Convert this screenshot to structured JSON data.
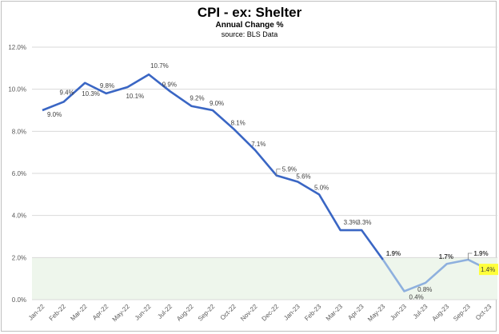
{
  "chart_data": {
    "type": "line",
    "title": "CPI - ex: Shelter",
    "subtitle": "Annual Change %",
    "source": "source: BLS Data",
    "xlabel": "",
    "ylabel": "",
    "ylim": [
      0,
      12
    ],
    "y_ticks": [
      "0.0%",
      "2.0%",
      "4.0%",
      "6.0%",
      "8.0%",
      "10.0%",
      "12.0%"
    ],
    "grid": true,
    "shaded_band": {
      "from": 0,
      "to": 2,
      "color": "#eef6ec"
    },
    "categories": [
      "Jan-22",
      "Feb-22",
      "Mar-22",
      "Apr-22",
      "May-22",
      "Jun-22",
      "Jul-22",
      "Aug-22",
      "Sep-22",
      "Oct-22",
      "Nov-22",
      "Dec-22",
      "Jan-23",
      "Feb-23",
      "Mar-23",
      "Apr-23",
      "May-23",
      "Jun-23",
      "Jul-23",
      "Aug-23",
      "Sep-23",
      "Oct-23"
    ],
    "series": [
      {
        "values": [
          9.0,
          9.4,
          10.3,
          9.8,
          10.1,
          10.7,
          9.9,
          9.2,
          9.0,
          8.1,
          7.1,
          5.9,
          5.6,
          5.0,
          3.3,
          3.3,
          1.9,
          0.4,
          0.8,
          1.7,
          1.9,
          1.4
        ],
        "labels": [
          "9.0%",
          "9.4%",
          "10.3%",
          "9.8%",
          "10.1%",
          "10.7%",
          "9.9%",
          "9.2%",
          "9.0%",
          "8.1%",
          "7.1%",
          "5.9%",
          "5.6%",
          "5.0%",
          "3.3%",
          "3.3%",
          "1.9%",
          "0.4%",
          "0.8%",
          "1.7%",
          "1.9%",
          "1.4%"
        ],
        "color_early": "#3a66c4",
        "color_late": "#8eb0de"
      }
    ],
    "highlight_label_color": "#ffff3a"
  }
}
